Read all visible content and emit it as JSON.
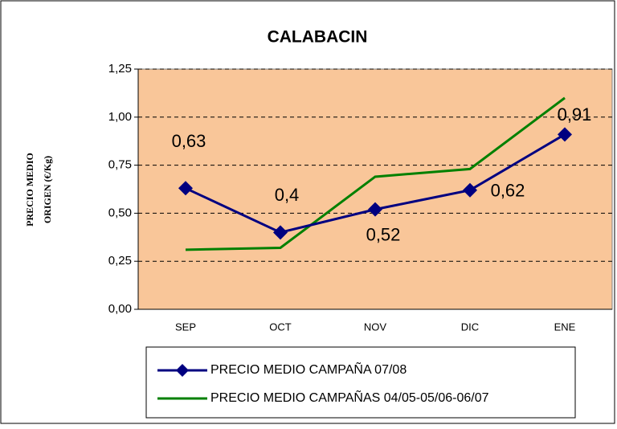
{
  "chart_data": {
    "type": "line",
    "title": "CALABACIN",
    "ylabel": [
      "PRECIO MEDIO",
      "ORIGEN (€/Kg)"
    ],
    "categories": [
      "SEP",
      "OCT",
      "NOV",
      "DIC",
      "ENE"
    ],
    "series": [
      {
        "name": "PRECIO MEDIO CAMPAÑA 07/08",
        "color": "#000080",
        "marker": "diamond",
        "values": [
          0.63,
          0.4,
          0.52,
          0.62,
          0.91
        ],
        "value_labels": [
          "0,63",
          "0,4",
          "0,52",
          "0,62",
          "0,91"
        ]
      },
      {
        "name": "PRECIO MEDIO CAMPAÑAS 04/05-05/06-06/07",
        "color": "#008000",
        "values": [
          0.31,
          0.32,
          0.69,
          0.73,
          1.1
        ]
      }
    ],
    "ylim": [
      0,
      1.25
    ],
    "yticks": [
      {
        "value": 0,
        "label": "0,00"
      },
      {
        "value": 0.25,
        "label": "0,25"
      },
      {
        "value": 0.5,
        "label": "0,50"
      },
      {
        "value": 0.75,
        "label": "0,75"
      },
      {
        "value": 1,
        "label": "1,00"
      },
      {
        "value": 1.25,
        "label": "1,25"
      }
    ],
    "grid": true,
    "plot_background": "#F9C699"
  }
}
